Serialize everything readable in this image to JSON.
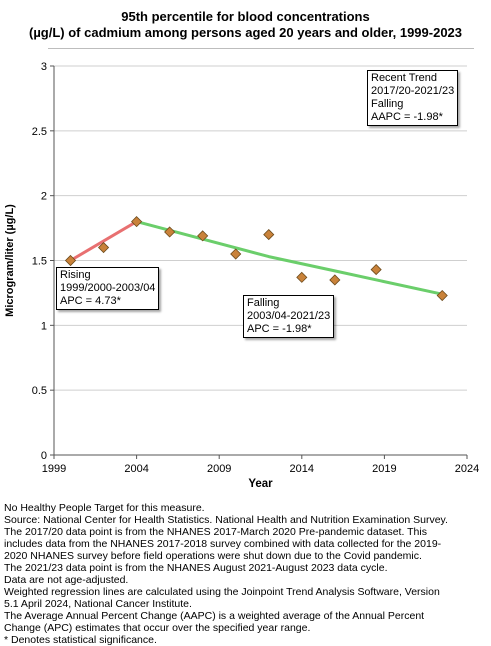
{
  "title": {
    "line1": "95th percentile for blood concentrations",
    "line2": "(µg/L) of cadmium among persons aged 20 years and older, 1999-2023"
  },
  "chart_data": {
    "type": "line",
    "xlabel": "Year",
    "ylabel": "Microgram/liter (µg/L)",
    "xlim": [
      1999,
      2024
    ],
    "ylim": [
      0,
      3
    ],
    "xticks": [
      "1999",
      "2004",
      "2009",
      "2014",
      "2019",
      "2024"
    ],
    "yticks": [
      "0",
      "0.5",
      "1",
      "1.5",
      "2",
      "2.5",
      "3"
    ],
    "grid": "horizontal",
    "data_points": {
      "x": [
        2000,
        2002,
        2004,
        2006,
        2008,
        2010,
        2012,
        2014,
        2016,
        2018.5,
        2022.5
      ],
      "y": [
        1.5,
        1.6,
        1.8,
        1.72,
        1.69,
        1.55,
        1.7,
        1.37,
        1.35,
        1.43,
        1.23
      ]
    },
    "trend_segments": [
      {
        "x": [
          2000,
          2004
        ],
        "y": [
          1.5,
          1.8
        ],
        "color": "#e87071"
      },
      {
        "x": [
          2004,
          2012,
          2016,
          2022.5
        ],
        "y": [
          1.8,
          1.53,
          1.42,
          1.24
        ],
        "color": "#6bce6b"
      }
    ],
    "point_color": "#c9823a"
  },
  "annotations": {
    "rising": [
      "Rising",
      "1999/2000-2003/04",
      "APC =  4.73*"
    ],
    "falling": [
      "Falling",
      "2003/04-2021/23",
      "APC = -1.98*"
    ],
    "recent": [
      "Recent Trend",
      "2017/20-2021/23",
      "Falling",
      "AAPC = -1.98*"
    ]
  },
  "notes": [
    "No Healthy People Target for this measure.",
    "Source: National Center for Health Statistics. National Health and Nutrition Examination Survey.",
    "The 2017/20 data point is from the NHANES 2017-March 2020 Pre-pandemic dataset. This",
    "includes data from the NHANES 2017-2018 survey combined with data collected for the 2019-",
    "2020 NHANES survey before field operations were shut down due to the Covid pandemic.",
    "The 2021/23 data point is from the NHANES August 2021-August 2023 data cycle.",
    "Data are not age-adjusted.",
    "Weighted regression lines are calculated using the Joinpoint Trend Analysis Software, Version",
    "5.1 April 2024, National Cancer Institute.",
    "The Average Annual Percent Change (AAPC) is a weighted average of the Annual Percent",
    "Change (APC) estimates that occur over the specified year range.",
    "* Denotes statistical significance."
  ]
}
